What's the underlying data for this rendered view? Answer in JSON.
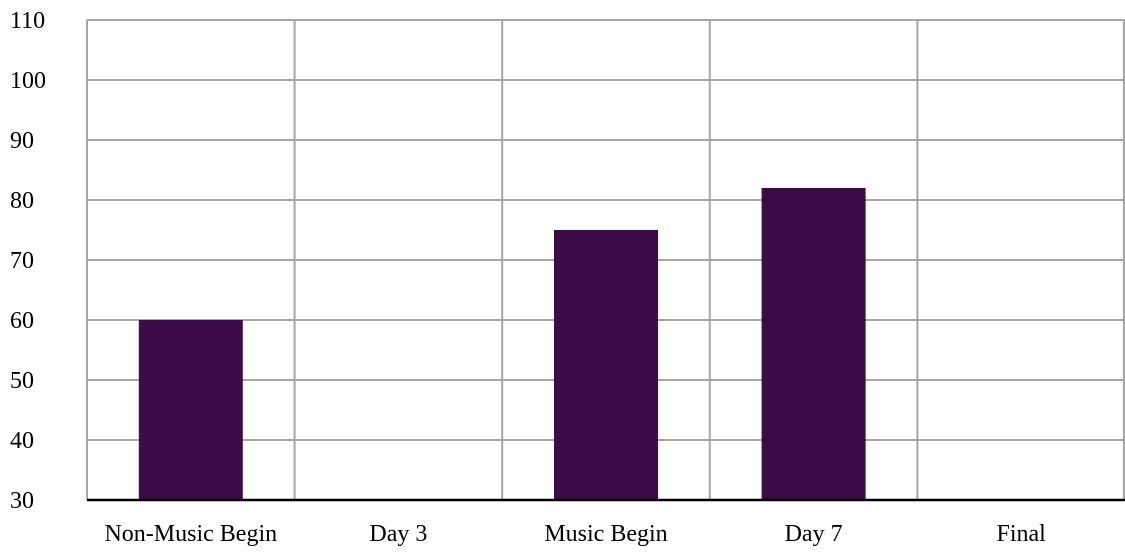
{
  "chart_data": {
    "type": "bar",
    "title": "",
    "xlabel": "",
    "ylabel": "",
    "categories": [
      "Non-Music Begin",
      "Day 3",
      "Music Begin",
      "Day 7",
      "Final"
    ],
    "values": [
      60,
      null,
      75,
      82,
      null
    ],
    "ylim": [
      30,
      110
    ],
    "yticks": [
      30,
      40,
      50,
      60,
      70,
      80,
      90,
      100,
      110
    ],
    "ytick_labels": [
      "30",
      "40",
      "50",
      "60",
      "70",
      "80",
      "90",
      "100",
      "110"
    ],
    "grid": "on (horizontal and vertical)",
    "legend": "none",
    "colors": {
      "bar": "#3d0b47",
      "grid": "#a6a6a6",
      "axis": "#000000"
    }
  }
}
